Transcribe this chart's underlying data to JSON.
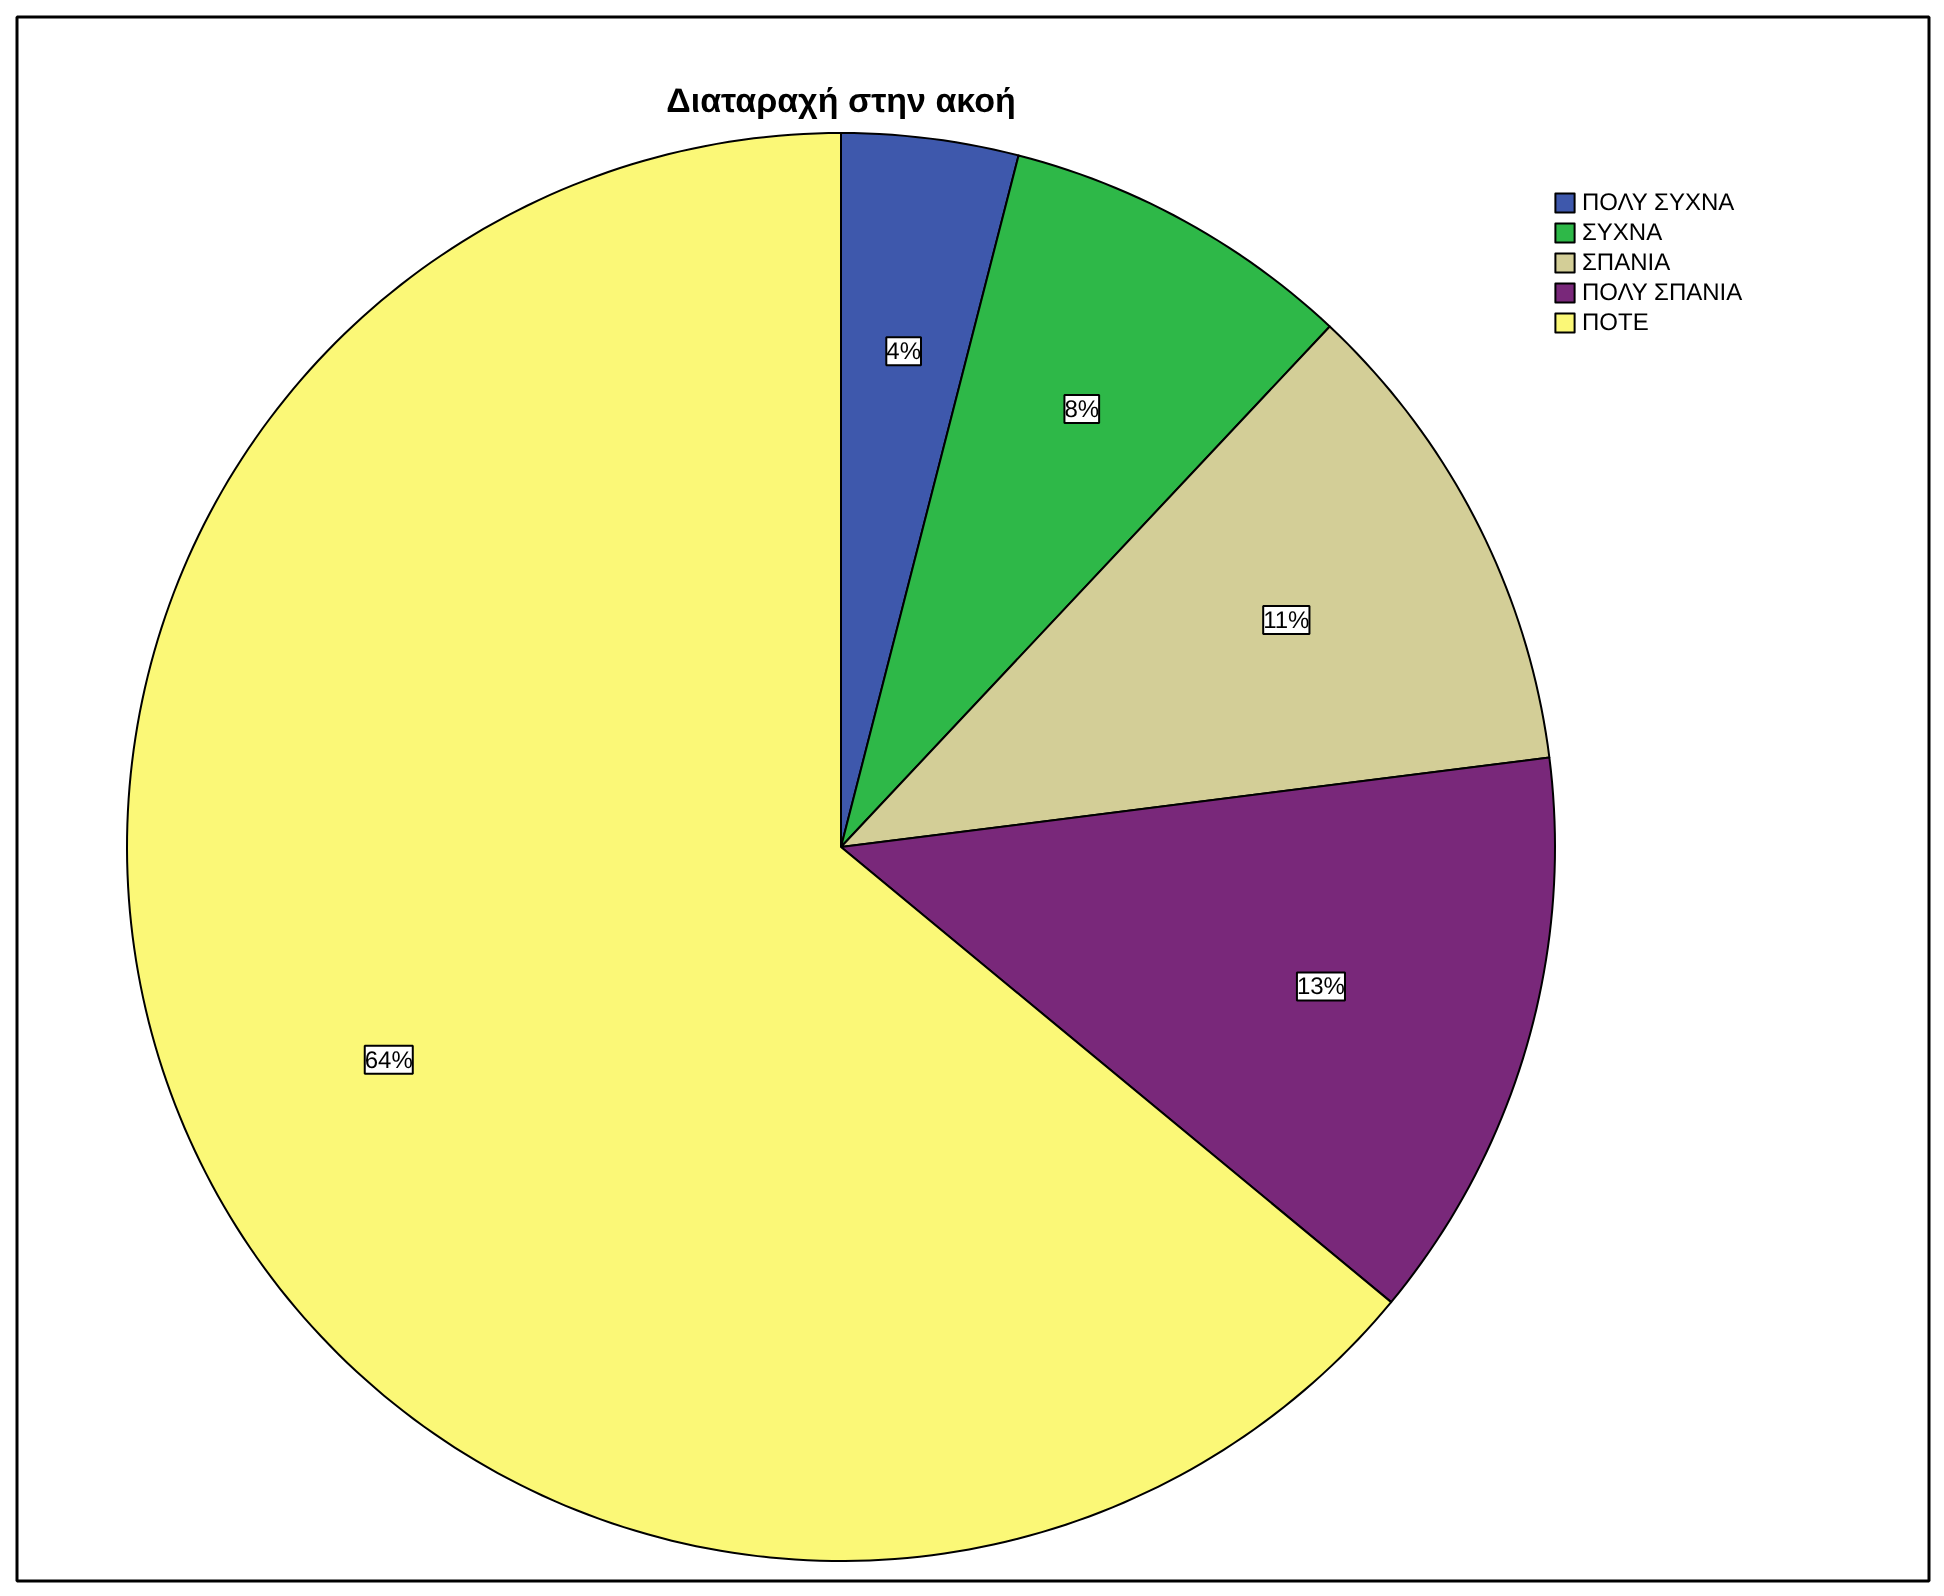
{
  "chart_data": {
    "type": "pie",
    "title": "Διαταραχή στην ακοή",
    "categories": [
      "ΠΟΛΥ ΣΥΧΝΑ",
      "ΣΥΧΝΑ",
      "ΣΠΑΝΙΑ",
      "ΠΟΛΥ ΣΠΑΝΙΑ",
      "ΠΟΤΕ"
    ],
    "values": [
      4,
      8,
      11,
      13,
      64
    ],
    "colors": [
      "#3e58ac",
      "#2eb848",
      "#d3ce97",
      "#79287a",
      "#fbf877"
    ],
    "value_labels": [
      "4%",
      "8%",
      "11%",
      "13%",
      "64%"
    ],
    "legend": "top right"
  }
}
